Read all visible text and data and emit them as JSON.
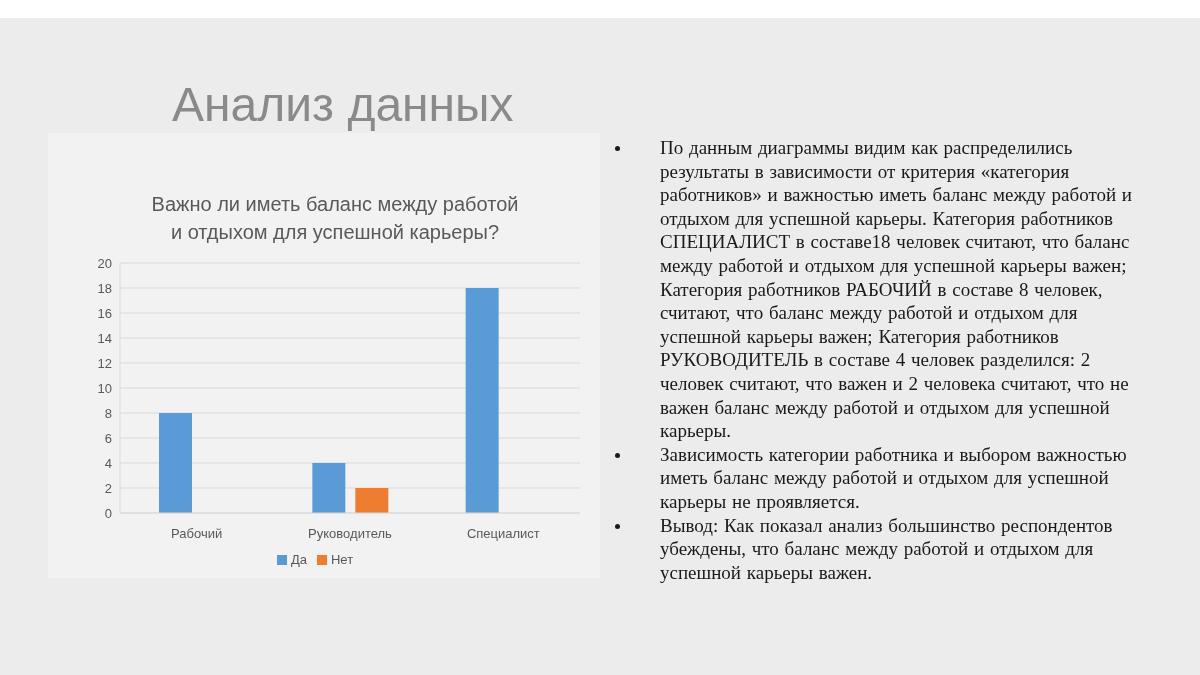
{
  "chart_data": {
    "type": "bar",
    "title": "Важно ли иметь баланс между работой и отдыхом для успешной карьеры?",
    "categories": [
      "Рабочий",
      "Руководитель",
      "Специалист"
    ],
    "series": [
      {
        "name": "Да",
        "color": "#5b9bd5",
        "values": [
          8,
          4,
          18
        ]
      },
      {
        "name": "Нет",
        "color": "#ed7d31",
        "values": [
          null,
          2,
          null
        ]
      }
    ],
    "ylim": [
      0,
      20
    ],
    "yticks": [
      0,
      2,
      4,
      6,
      8,
      10,
      12,
      14,
      16,
      18,
      20
    ],
    "grid": "y",
    "legend": "bottom",
    "annotations": [
      "Анализ данных",
      "По данным диаграммы видим как распределились результаты в зависимости от критерия «категория работников» и важностью иметь баланс между работой и отдыхом для успешной карьеры. Категория работников СПЕЦИАЛИСТ в составе18 человек считают, что баланс между работой и отдыхом для успешной карьеры важен; Категория работников РАБОЧИЙ в составе 8 человек, считают, что баланс между работой и отдыхом для успешной карьеры важен; Категория работников РУКОВОДИТЕЛЬ в составе 4 человек разделился: 2 человек считают, что важен и 2 человека считают, что не важен баланс между работой и отдыхом для успешной карьеры.",
      "Зависимость категории работника и выбором важностью иметь баланс между работой и отдыхом для успешной карьеры не проявляется.",
      "Вывод: Как показал анализ большинство респондентов убеждены, что баланс между работой и отдыхом для успешной карьеры важен."
    ]
  }
}
